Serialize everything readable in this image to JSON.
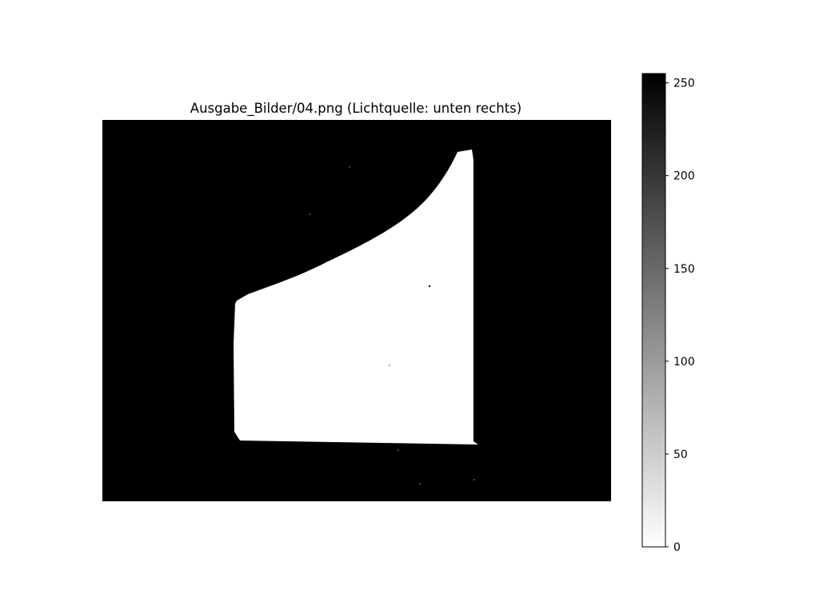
{
  "chart_data": {
    "type": "heatmap",
    "title": "Ausgabe_Bilder/04.png (Lichtquelle: unten rechts)",
    "xlabel": "",
    "ylabel": "",
    "axes_visible": false,
    "colormap": "gray_r",
    "image_description_values": {
      "background_value": 255,
      "object_value": 0
    },
    "colorbar": {
      "range": [
        0,
        255
      ],
      "ticks": [
        0,
        50,
        100,
        150,
        200,
        250
      ],
      "tick_labels": [
        "0",
        "50",
        "100",
        "150",
        "200",
        "250"
      ]
    }
  }
}
